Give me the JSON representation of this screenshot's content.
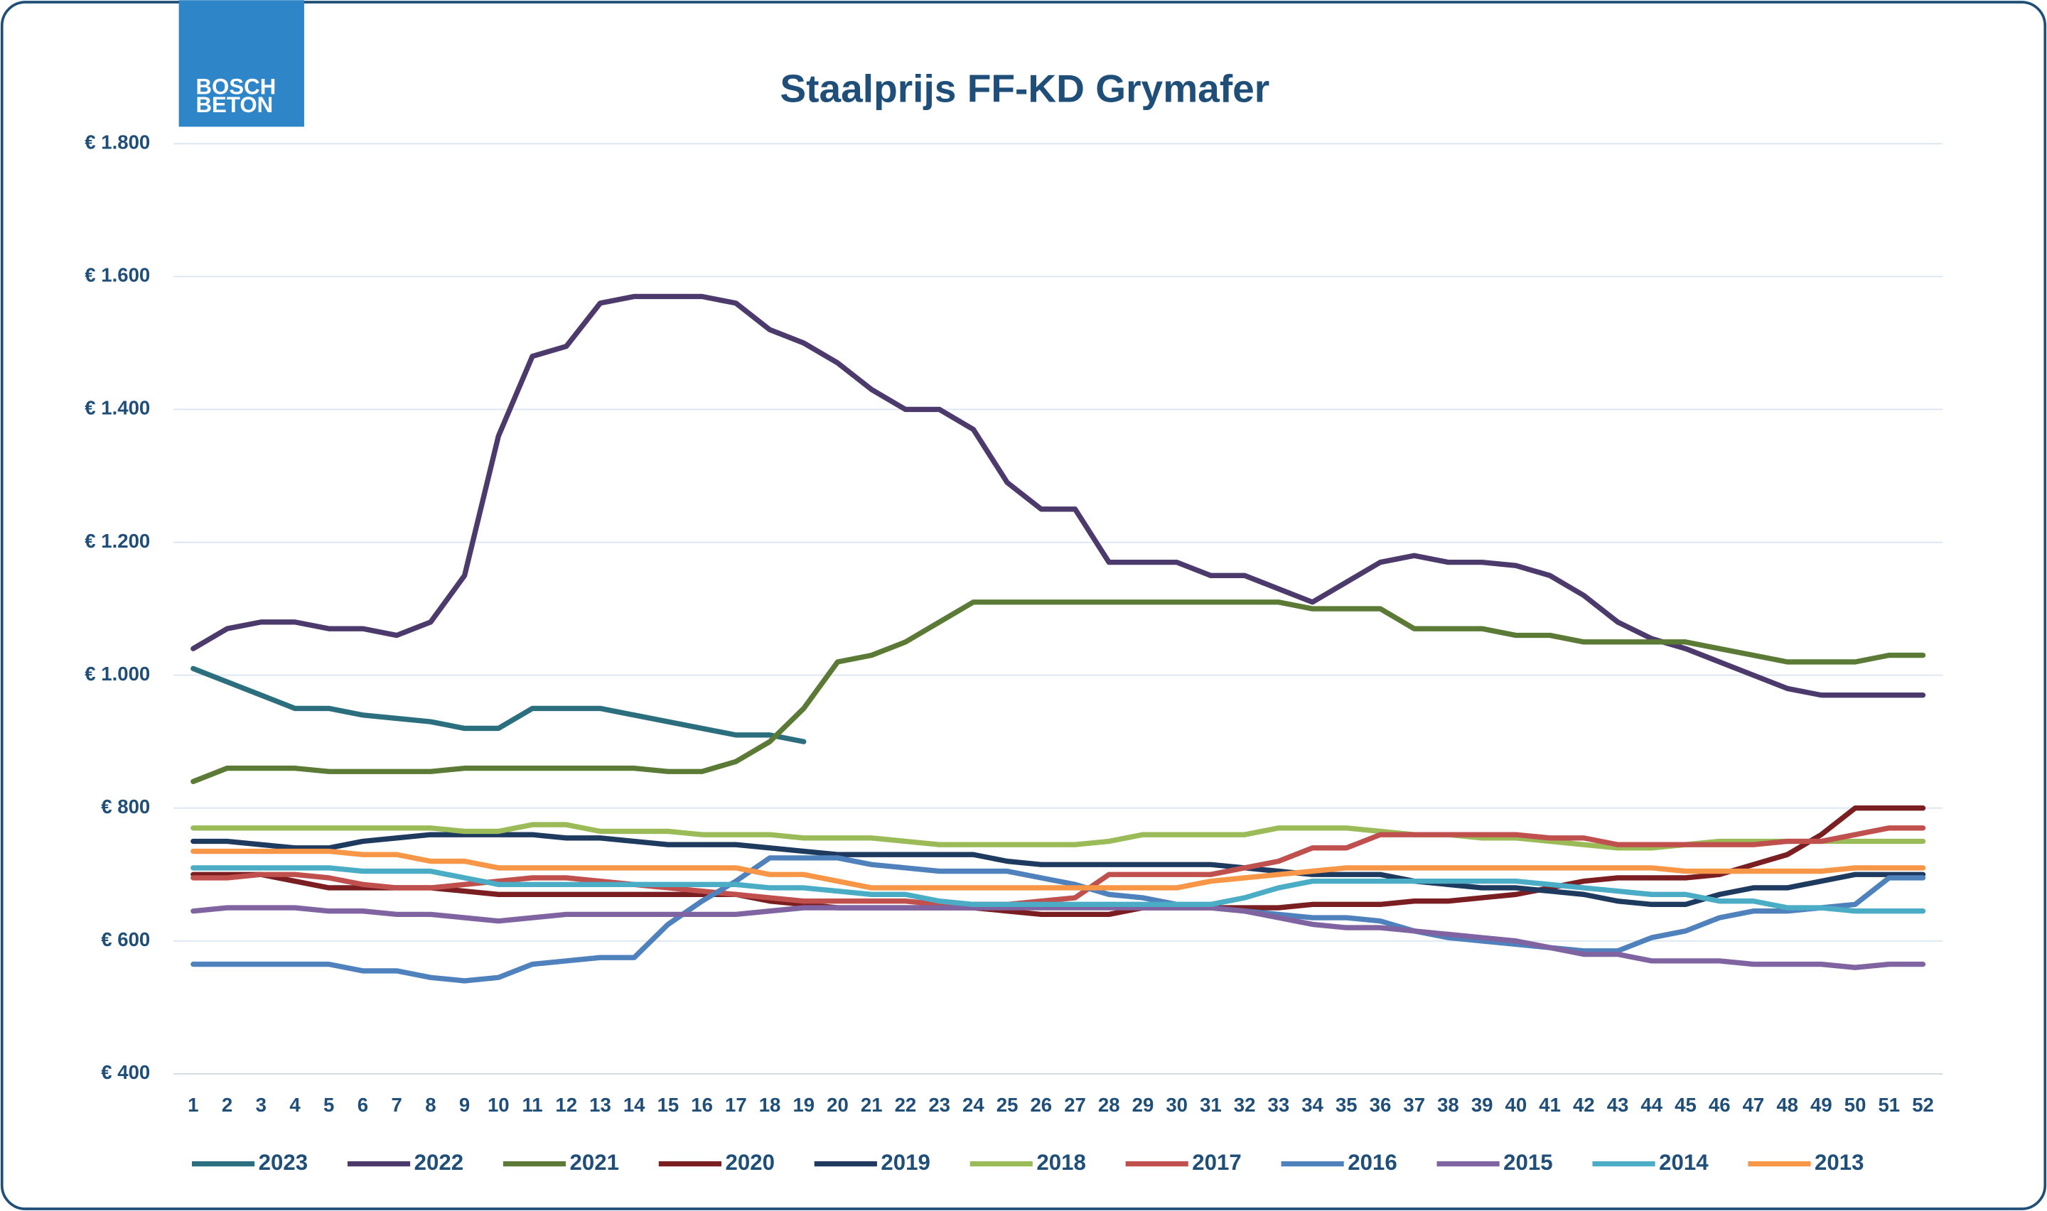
{
  "logo": [
    "BOSCH",
    "BETON"
  ],
  "chart_data": {
    "type": "line",
    "title": "Staalprijs FF-KD Grymafer",
    "categories": [
      1,
      2,
      3,
      4,
      5,
      6,
      7,
      8,
      9,
      10,
      11,
      12,
      13,
      14,
      15,
      16,
      17,
      18,
      19,
      20,
      21,
      22,
      23,
      24,
      25,
      26,
      27,
      28,
      29,
      30,
      31,
      32,
      33,
      34,
      35,
      36,
      37,
      38,
      39,
      40,
      41,
      42,
      43,
      44,
      45,
      46,
      47,
      48,
      49,
      50,
      51,
      52
    ],
    "ylim": [
      400,
      1800
    ],
    "yticks": [
      {
        "value": 400,
        "label": "€ 400"
      },
      {
        "value": 600,
        "label": "€ 600"
      },
      {
        "value": 800,
        "label": "€ 800"
      },
      {
        "value": 1000,
        "label": "€ 1.000"
      },
      {
        "value": 1200,
        "label": "€ 1.200"
      },
      {
        "value": 1400,
        "label": "€ 1.400"
      },
      {
        "value": 1600,
        "label": "€ 1.600"
      },
      {
        "value": 1800,
        "label": "€ 1.800"
      }
    ],
    "grid": true,
    "legend": "bottom",
    "series": [
      {
        "name": "2023",
        "color": "#2b6e7e",
        "values": [
          1010,
          990,
          970,
          950,
          950,
          940,
          935,
          930,
          920,
          920,
          950,
          950,
          950,
          940,
          930,
          920,
          910,
          910,
          900,
          null,
          null,
          null,
          null,
          null,
          null,
          null,
          null,
          null,
          null,
          null,
          null,
          null,
          null,
          null,
          null,
          null,
          null,
          null,
          null,
          null,
          null,
          null,
          null,
          null,
          null,
          null,
          null,
          null,
          null,
          null,
          null,
          null
        ]
      },
      {
        "name": "2022",
        "color": "#4b3a6b",
        "values": [
          1040,
          1070,
          1080,
          1080,
          1070,
          1070,
          1060,
          1080,
          1150,
          1360,
          1480,
          1495,
          1560,
          1570,
          1570,
          1570,
          1560,
          1520,
          1500,
          1470,
          1430,
          1400,
          1400,
          1370,
          1290,
          1250,
          1250,
          1170,
          1170,
          1170,
          1150,
          1150,
          1130,
          1110,
          1140,
          1170,
          1180,
          1170,
          1170,
          1165,
          1150,
          1120,
          1080,
          1055,
          1040,
          1020,
          1000,
          980,
          970,
          970,
          970,
          970
        ]
      },
      {
        "name": "2021",
        "color": "#5b7a35",
        "values": [
          840,
          860,
          860,
          860,
          855,
          855,
          855,
          855,
          860,
          860,
          860,
          860,
          860,
          860,
          855,
          855,
          870,
          900,
          950,
          1020,
          1030,
          1050,
          1080,
          1110,
          1110,
          1110,
          1110,
          1110,
          1110,
          1110,
          1110,
          1110,
          1110,
          1100,
          1100,
          1100,
          1070,
          1070,
          1070,
          1060,
          1060,
          1050,
          1050,
          1050,
          1050,
          1040,
          1030,
          1020,
          1020,
          1020,
          1030,
          1030
        ]
      },
      {
        "name": "2020",
        "color": "#7b1e22",
        "values": [
          700,
          700,
          700,
          690,
          680,
          680,
          680,
          680,
          675,
          670,
          670,
          670,
          670,
          670,
          670,
          670,
          670,
          660,
          655,
          650,
          650,
          650,
          650,
          650,
          645,
          640,
          640,
          640,
          650,
          650,
          650,
          650,
          650,
          655,
          655,
          655,
          660,
          660,
          665,
          670,
          680,
          690,
          695,
          695,
          695,
          700,
          715,
          730,
          760,
          800,
          800,
          800
        ]
      },
      {
        "name": "2019",
        "color": "#1f3a5f",
        "values": [
          750,
          750,
          745,
          740,
          740,
          750,
          755,
          760,
          760,
          760,
          760,
          755,
          755,
          750,
          745,
          745,
          745,
          740,
          735,
          730,
          730,
          730,
          730,
          730,
          720,
          715,
          715,
          715,
          715,
          715,
          715,
          710,
          705,
          700,
          700,
          700,
          690,
          685,
          680,
          680,
          675,
          670,
          660,
          655,
          655,
          670,
          680,
          680,
          690,
          700,
          700,
          700
        ]
      },
      {
        "name": "2018",
        "color": "#9bbb59",
        "values": [
          770,
          770,
          770,
          770,
          770,
          770,
          770,
          770,
          765,
          765,
          775,
          775,
          765,
          765,
          765,
          760,
          760,
          760,
          755,
          755,
          755,
          750,
          745,
          745,
          745,
          745,
          745,
          750,
          760,
          760,
          760,
          760,
          770,
          770,
          770,
          765,
          760,
          760,
          755,
          755,
          750,
          745,
          740,
          740,
          745,
          750,
          750,
          750,
          750,
          750,
          750,
          750
        ]
      },
      {
        "name": "2017",
        "color": "#c0504d",
        "values": [
          695,
          695,
          700,
          700,
          695,
          685,
          680,
          680,
          685,
          690,
          695,
          695,
          690,
          685,
          680,
          675,
          670,
          665,
          660,
          660,
          660,
          660,
          655,
          655,
          655,
          660,
          665,
          700,
          700,
          700,
          700,
          710,
          720,
          740,
          740,
          760,
          760,
          760,
          760,
          760,
          755,
          755,
          745,
          745,
          745,
          745,
          745,
          750,
          750,
          760,
          770,
          770
        ]
      },
      {
        "name": "2016",
        "color": "#4f81bd",
        "values": [
          565,
          565,
          565,
          565,
          565,
          555,
          555,
          545,
          540,
          545,
          565,
          570,
          575,
          575,
          625,
          660,
          690,
          725,
          725,
          725,
          715,
          710,
          705,
          705,
          705,
          695,
          685,
          670,
          665,
          655,
          650,
          645,
          640,
          635,
          635,
          630,
          615,
          605,
          600,
          595,
          590,
          585,
          585,
          605,
          615,
          635,
          645,
          645,
          650,
          655,
          695,
          695
        ]
      },
      {
        "name": "2015",
        "color": "#8064a2",
        "values": [
          645,
          650,
          650,
          650,
          645,
          645,
          640,
          640,
          635,
          630,
          635,
          640,
          640,
          640,
          640,
          640,
          640,
          645,
          650,
          650,
          650,
          650,
          650,
          650,
          650,
          650,
          650,
          650,
          650,
          650,
          650,
          645,
          635,
          625,
          620,
          620,
          615,
          610,
          605,
          600,
          590,
          580,
          580,
          570,
          570,
          570,
          565,
          565,
          565,
          560,
          565,
          565
        ]
      },
      {
        "name": "2014",
        "color": "#4bacc6",
        "values": [
          710,
          710,
          710,
          710,
          710,
          705,
          705,
          705,
          695,
          685,
          685,
          685,
          685,
          685,
          685,
          685,
          685,
          680,
          680,
          675,
          670,
          670,
          660,
          655,
          655,
          655,
          655,
          655,
          655,
          655,
          655,
          665,
          680,
          690,
          690,
          690,
          690,
          690,
          690,
          690,
          685,
          680,
          675,
          670,
          670,
          660,
          660,
          650,
          650,
          645,
          645,
          645
        ]
      },
      {
        "name": "2013",
        "color": "#f79646",
        "values": [
          735,
          735,
          735,
          735,
          735,
          730,
          730,
          720,
          720,
          710,
          710,
          710,
          710,
          710,
          710,
          710,
          710,
          700,
          700,
          690,
          680,
          680,
          680,
          680,
          680,
          680,
          680,
          680,
          680,
          680,
          690,
          695,
          700,
          705,
          710,
          710,
          710,
          710,
          710,
          710,
          710,
          710,
          710,
          710,
          705,
          705,
          705,
          705,
          705,
          710,
          710,
          710
        ]
      }
    ]
  }
}
